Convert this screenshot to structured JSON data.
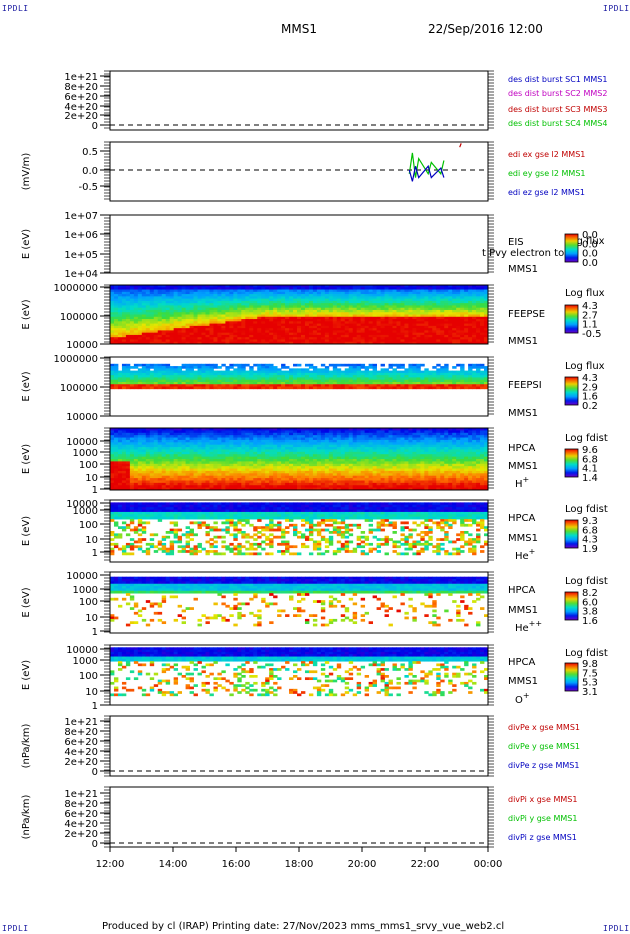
{
  "corner_label": "IPDLI",
  "header": {
    "spacecraft": "MMS1",
    "datetime": "22/Sep/2016 12:00"
  },
  "footer": {
    "text": "Produced by cl (IRAP)    Printing date: 27/Nov/2023    mms_mms1_srvy_vue_web2.cl"
  },
  "colors": {
    "sc1": "#0000c0",
    "sc2": "#c000c0",
    "sc3": "#c00000",
    "sc4": "#00c000",
    "x": "#c00000",
    "y": "#00c000",
    "z": "#0000c0"
  },
  "chart_data": {
    "type": "heatmap",
    "x_axis": {
      "range": [
        "12:00",
        "00:00"
      ],
      "tick_labels": [
        "12:00",
        "14:00",
        "16:00",
        "18:00",
        "20:00",
        "22:00",
        "00:00"
      ]
    },
    "panels": [
      {
        "id": "des",
        "kind": "line",
        "ylabel": "",
        "tick_labels": [
          "1e+21",
          "8e+20",
          "6e+20",
          "4e+20",
          "2e+20",
          "0"
        ],
        "legend": [
          {
            "text": "des dist burst SC1 MMS1",
            "color": "#0000c0"
          },
          {
            "text": "des dist burst SC2 MMS2",
            "color": "#c000c0"
          },
          {
            "text": "des dist burst SC3 MMS3",
            "color": "#c00000"
          },
          {
            "text": "des dist burst SC4 MMS4",
            "color": "#00c000"
          }
        ]
      },
      {
        "id": "edi",
        "kind": "line",
        "ylabel": "(mV/m)",
        "tick_labels": [
          "0.5",
          "0.0",
          "-0.5"
        ],
        "ylim": [
          -0.8,
          0.8
        ],
        "legend": [
          {
            "text": "edi ex gse l2 MMS1",
            "color": "#c00000"
          },
          {
            "text": "edi ey gse l2 MMS1",
            "color": "#00c000"
          },
          {
            "text": "edi ez gse l2 MMS1",
            "color": "#0000c0"
          }
        ],
        "series": [
          {
            "color": "#00c000",
            "points": [
              [
                21.5,
                -0.1
              ],
              [
                21.6,
                0.45
              ],
              [
                21.7,
                -0.2
              ],
              [
                21.8,
                0.3
              ],
              [
                22.1,
                -0.1
              ],
              [
                22.2,
                0.2
              ],
              [
                22.5,
                -0.1
              ],
              [
                22.6,
                0.25
              ]
            ]
          },
          {
            "color": "#0000c0",
            "points": [
              [
                21.5,
                0.0
              ],
              [
                21.6,
                -0.3
              ],
              [
                21.7,
                0.1
              ],
              [
                21.8,
                -0.2
              ],
              [
                22.1,
                0.1
              ],
              [
                22.2,
                -0.2
              ],
              [
                22.5,
                0.05
              ],
              [
                22.6,
                -0.2
              ]
            ]
          },
          {
            "color": "#c00000",
            "points": [
              [
                23.1,
                0.6
              ],
              [
                23.15,
                0.7
              ]
            ]
          }
        ]
      },
      {
        "id": "eis",
        "kind": "spectrogram",
        "ylabel": "E (eV)",
        "tick_labels": [
          "1e+07",
          "1e+06",
          "1e+05",
          "1e+04"
        ],
        "right_labels": [
          "EIS",
          "MMS1"
        ],
        "overlay_label": "t Pvy electron to",
        "colorbar": {
          "title": "Log flux",
          "labels": [
            "0.0",
            "0.0",
            "0.0",
            "0.0"
          ]
        }
      },
      {
        "id": "feepse",
        "kind": "spectrogram",
        "ylabel": "E (eV)",
        "tick_labels": [
          "1000000",
          "100000",
          "10000"
        ],
        "right_labels": [
          "FEEPSE",
          "MMS1"
        ],
        "colorbar": {
          "title": "Log flux",
          "labels": [
            "4.3",
            "2.7",
            "1.1",
            "-0.5"
          ]
        }
      },
      {
        "id": "feepsi",
        "kind": "spectrogram",
        "ylabel": "E (eV)",
        "tick_labels": [
          "1000000",
          "100000",
          "10000"
        ],
        "right_labels": [
          "FEEPSI",
          "MMS1"
        ],
        "colorbar": {
          "title": "Log flux",
          "labels": [
            "4.3",
            "2.9",
            "1.6",
            "0.2"
          ]
        }
      },
      {
        "id": "hpca_h",
        "kind": "spectrogram",
        "ylabel": "E (eV)",
        "tick_labels": [
          "10000",
          "1000",
          "100",
          "10",
          "1"
        ],
        "right_labels": [
          "HPCA",
          "MMS1",
          "H+"
        ],
        "colorbar": {
          "title": "Log fdist",
          "labels": [
            "9.6",
            "6.8",
            "4.1",
            "1.4"
          ]
        }
      },
      {
        "id": "hpca_he",
        "kind": "spectrogram",
        "ylabel": "E (eV)",
        "tick_labels": [
          "10000",
          "1000",
          "100",
          "10",
          "1"
        ],
        "right_labels": [
          "HPCA",
          "MMS1",
          "He+"
        ],
        "colorbar": {
          "title": "Log fdist",
          "labels": [
            "9.3",
            "6.8",
            "4.3",
            "1.9"
          ]
        }
      },
      {
        "id": "hpca_hepp",
        "kind": "spectrogram",
        "ylabel": "E (eV)",
        "tick_labels": [
          "10000",
          "1000",
          "100",
          "10",
          "1"
        ],
        "right_labels": [
          "HPCA",
          "MMS1",
          "He++"
        ],
        "colorbar": {
          "title": "Log fdist",
          "labels": [
            "8.2",
            "6.0",
            "3.8",
            "1.6"
          ]
        }
      },
      {
        "id": "hpca_o",
        "kind": "spectrogram",
        "ylabel": "E (eV)",
        "tick_labels": [
          "10000",
          "1000",
          "100",
          "10",
          "1"
        ],
        "right_labels": [
          "HPCA",
          "MMS1",
          "O+"
        ],
        "colorbar": {
          "title": "Log fdist",
          "labels": [
            "9.8",
            "7.5",
            "5.3",
            "3.1"
          ]
        }
      },
      {
        "id": "divpe",
        "kind": "line",
        "ylabel": "(nPa/km)",
        "tick_labels": [
          "1e+21",
          "8e+20",
          "6e+20",
          "4e+20",
          "2e+20",
          "0"
        ],
        "legend": [
          {
            "text": "divPe x gse MMS1",
            "color": "#c00000"
          },
          {
            "text": "divPe y gse MMS1",
            "color": "#00c000"
          },
          {
            "text": "divPe z gse MMS1",
            "color": "#0000c0"
          }
        ]
      },
      {
        "id": "divpi",
        "kind": "line",
        "ylabel": "(nPa/km)",
        "tick_labels": [
          "1e+21",
          "8e+20",
          "6e+20",
          "4e+20",
          "2e+20",
          "0"
        ],
        "legend": [
          {
            "text": "divPi x gse MMS1",
            "color": "#c00000"
          },
          {
            "text": "divPi y gse MMS1",
            "color": "#00c000"
          },
          {
            "text": "divPi z gse MMS1",
            "color": "#0000c0"
          }
        ]
      }
    ]
  }
}
